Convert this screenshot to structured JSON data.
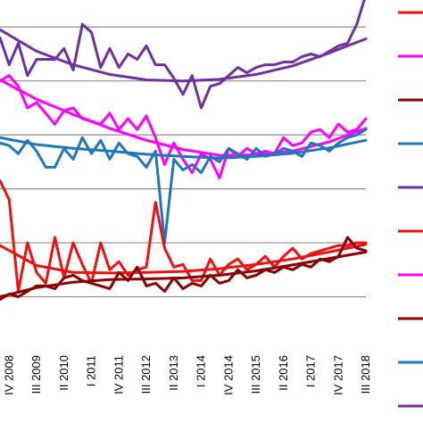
{
  "chart_data": {
    "type": "line",
    "title": "",
    "xlabel": "",
    "ylabel": "",
    "grid": true,
    "legend_position": "right",
    "x_tick_labels": [
      "IV 2008",
      "III 2009",
      "II 2010",
      "I 2011",
      "IV 2011",
      "III 2012",
      "II 2013",
      "I 2014",
      "IV 2014",
      "III 2015",
      "II 2016",
      "I 2017",
      "IV 2017",
      "III 2018"
    ],
    "x_tick_positions": [
      1,
      4,
      7,
      10,
      13,
      16,
      19,
      22,
      25,
      28,
      31,
      34,
      37,
      40
    ],
    "xlim": [
      0,
      40
    ],
    "ylim": [
      0,
      6.5
    ],
    "gridlines": [
      1,
      2,
      3,
      4,
      5,
      6
    ],
    "series": [
      {
        "color": "#7030A0",
        "style": "raw",
        "x": [
          0,
          1,
          2,
          3,
          4,
          5,
          6,
          7,
          8,
          9,
          10,
          11,
          12,
          13,
          14,
          15,
          16,
          17,
          18,
          19,
          20,
          21,
          22,
          23,
          24,
          25,
          26,
          27,
          28,
          29,
          30,
          31,
          32,
          33,
          34,
          35,
          36,
          37,
          38,
          39,
          40
        ],
        "y": [
          5.8,
          5.3,
          5.7,
          5.1,
          5.4,
          5.4,
          5.4,
          5.6,
          5.2,
          6.05,
          5.9,
          5.25,
          5.6,
          5.25,
          5.5,
          5.4,
          5.65,
          5.3,
          5.3,
          5.05,
          4.75,
          5.1,
          4.5,
          4.9,
          4.95,
          5.1,
          5.25,
          5.15,
          5.25,
          5.3,
          5.3,
          5.35,
          5.35,
          5.45,
          5.5,
          5.45,
          5.55,
          5.65,
          5.7,
          6.05,
          6.6
        ]
      },
      {
        "color": "#7030A0",
        "style": "trend",
        "x": [
          0,
          4,
          8,
          12,
          16,
          20,
          24,
          28,
          32,
          36,
          40
        ],
        "y": [
          5.95,
          5.55,
          5.3,
          5.12,
          5.02,
          5.0,
          5.03,
          5.12,
          5.28,
          5.52,
          5.78
        ]
      },
      {
        "color": "#FF00FF",
        "style": "raw",
        "x": [
          0,
          1,
          2,
          3,
          4,
          5,
          6,
          7,
          8,
          9,
          10,
          11,
          12,
          13,
          14,
          15,
          16,
          17,
          18,
          19,
          20,
          21,
          22,
          23,
          24,
          25,
          26,
          27,
          28,
          29,
          30,
          31,
          32,
          33,
          34,
          35,
          36,
          37,
          38,
          39,
          40
        ],
        "y": [
          5.0,
          5.1,
          4.9,
          4.5,
          4.6,
          4.4,
          4.2,
          4.45,
          4.5,
          4.3,
          4.25,
          4.2,
          4.4,
          4.1,
          4.3,
          4.1,
          4.35,
          3.95,
          3.45,
          3.85,
          3.55,
          3.3,
          3.65,
          3.55,
          3.2,
          3.75,
          3.6,
          3.75,
          3.65,
          3.7,
          3.65,
          3.95,
          3.8,
          3.85,
          4.05,
          4.1,
          3.95,
          4.2,
          4.05,
          4.1,
          4.3
        ]
      },
      {
        "color": "#FF00FF",
        "style": "trend",
        "x": [
          0,
          4,
          8,
          12,
          16,
          20,
          24,
          28,
          32,
          36,
          40
        ],
        "y": [
          5.02,
          4.66,
          4.38,
          4.12,
          3.9,
          3.73,
          3.62,
          3.63,
          3.7,
          3.87,
          4.12
        ]
      },
      {
        "color": "#1F77BC",
        "style": "raw",
        "x": [
          0,
          1,
          2,
          3,
          4,
          5,
          6,
          7,
          8,
          9,
          10,
          11,
          12,
          13,
          14,
          15,
          16,
          17,
          18,
          19,
          20,
          21,
          22,
          23,
          24,
          25,
          26,
          27,
          28,
          29,
          30,
          31,
          32,
          33,
          34,
          35,
          36,
          37,
          38,
          39,
          40
        ],
        "y": [
          3.85,
          3.8,
          3.65,
          3.9,
          3.7,
          3.4,
          3.4,
          3.75,
          3.55,
          3.95,
          3.65,
          3.9,
          3.55,
          3.85,
          3.65,
          3.6,
          3.4,
          3.7,
          2.0,
          3.55,
          3.35,
          3.45,
          3.3,
          3.6,
          3.5,
          3.75,
          3.65,
          3.55,
          3.75,
          3.6,
          3.65,
          3.75,
          3.7,
          3.6,
          3.85,
          3.8,
          3.7,
          3.85,
          3.95,
          4.0,
          4.1
        ]
      },
      {
        "color": "#1F77BC",
        "style": "trend",
        "x": [
          0,
          4,
          8,
          12,
          16,
          20,
          24,
          28,
          32,
          36,
          40
        ],
        "y": [
          3.95,
          3.82,
          3.75,
          3.7,
          3.64,
          3.6,
          3.57,
          3.6,
          3.66,
          3.76,
          3.9
        ]
      },
      {
        "color": "#EE1111",
        "style": "raw",
        "x": [
          0,
          1,
          2,
          3,
          4,
          5,
          6,
          7,
          8,
          9,
          10,
          11,
          12,
          13,
          14,
          15,
          16,
          17,
          18,
          19,
          20,
          21,
          22,
          23,
          24,
          25,
          26,
          27,
          28,
          29,
          30,
          31,
          32,
          33,
          34,
          35,
          36,
          37,
          38,
          39,
          40
        ],
        "y": [
          3.15,
          2.8,
          1.1,
          2.0,
          1.45,
          1.25,
          2.1,
          1.35,
          2.0,
          1.6,
          1.25,
          2.0,
          1.5,
          1.65,
          1.4,
          1.5,
          1.55,
          2.75,
          1.9,
          1.55,
          1.6,
          1.3,
          1.3,
          1.7,
          1.4,
          1.6,
          1.7,
          1.5,
          1.6,
          1.75,
          1.55,
          1.75,
          1.9,
          1.7,
          1.8,
          1.85,
          1.9,
          1.95,
          1.95,
          2.0,
          2.0
        ]
      },
      {
        "color": "#EE1111",
        "style": "trend",
        "x": [
          0,
          4,
          8,
          12,
          16,
          20,
          24,
          28,
          32,
          36,
          40
        ],
        "y": [
          1.95,
          1.58,
          1.45,
          1.44,
          1.45,
          1.47,
          1.52,
          1.6,
          1.7,
          1.83,
          1.97
        ]
      },
      {
        "color": "#8B0000",
        "style": "raw",
        "x": [
          0,
          1,
          2,
          3,
          4,
          5,
          6,
          7,
          8,
          9,
          10,
          11,
          12,
          13,
          14,
          15,
          16,
          17,
          18,
          19,
          20,
          21,
          22,
          23,
          24,
          25,
          26,
          27,
          28,
          29,
          30,
          31,
          32,
          33,
          34,
          35,
          36,
          37,
          38,
          39,
          40
        ],
        "y": [
          0.95,
          1.05,
          1.0,
          1.1,
          1.2,
          1.2,
          1.15,
          1.35,
          1.4,
          1.3,
          1.25,
          1.2,
          1.15,
          1.45,
          1.3,
          1.55,
          1.2,
          1.25,
          1.1,
          1.35,
          1.15,
          1.25,
          1.2,
          1.4,
          1.25,
          1.3,
          1.5,
          1.35,
          1.4,
          1.5,
          1.45,
          1.55,
          1.5,
          1.6,
          1.55,
          1.7,
          1.65,
          1.75,
          2.1,
          1.9,
          1.85
        ]
      },
      {
        "color": "#8B0000",
        "style": "trend",
        "x": [
          0,
          4,
          8,
          12,
          16,
          20,
          24,
          28,
          32,
          36,
          40
        ],
        "y": [
          1.0,
          1.17,
          1.27,
          1.32,
          1.33,
          1.35,
          1.4,
          1.48,
          1.59,
          1.71,
          1.83
        ]
      }
    ],
    "legend_entries": [
      {
        "color": "#EE1111"
      },
      {
        "color": "#FF00FF"
      },
      {
        "color": "#8B0000"
      },
      {
        "color": "#1F77BC"
      },
      {
        "color": "#7030A0"
      },
      {
        "color": "#EE1111"
      },
      {
        "color": "#FF00FF"
      },
      {
        "color": "#8B0000"
      },
      {
        "color": "#1F77BC"
      },
      {
        "color": "#7030A0"
      }
    ]
  }
}
